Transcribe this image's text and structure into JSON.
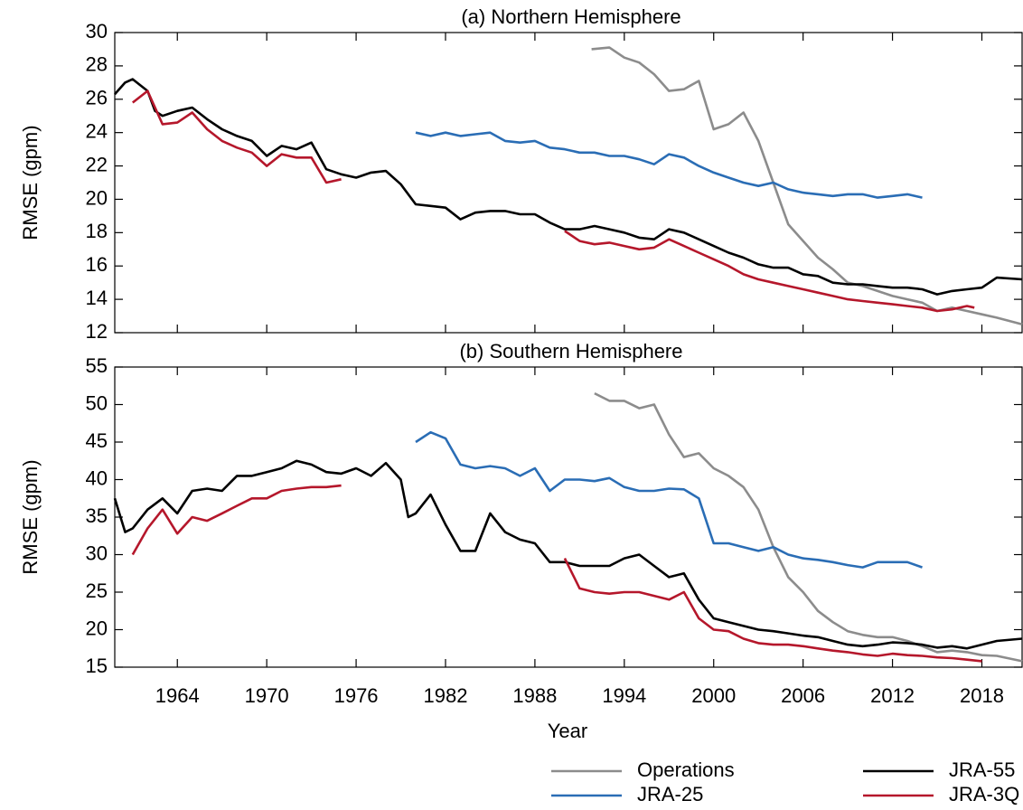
{
  "chart_data": [
    {
      "type": "line",
      "title": "(a) Northern Hemisphere",
      "ylabel": "RMSE (gpm)",
      "xlim": [
        1959.8,
        2020.7
      ],
      "xticks": [
        1964,
        1970,
        1976,
        1982,
        1988,
        1994,
        2000,
        2006,
        2012,
        2018
      ],
      "ylim": [
        12,
        30
      ],
      "yticks": [
        12,
        14,
        16,
        18,
        20,
        22,
        24,
        26,
        28,
        30
      ],
      "series": [
        {
          "color": "#8c8c8c",
          "x": [
            1991.8,
            1993,
            1994,
            1995,
            1996,
            1997,
            1998,
            1999,
            2000,
            2001,
            2002,
            2003,
            2004,
            2005,
            2006,
            2007,
            2008,
            2009,
            2010,
            2011,
            2012,
            2013,
            2014,
            2015,
            2016,
            2017,
            2018,
            2019,
            2020.7
          ],
          "values": [
            29,
            29.1,
            28.5,
            28.2,
            27.5,
            26.5,
            26.6,
            27.1,
            24.2,
            24.5,
            25.2,
            23.5,
            21,
            18.5,
            17.5,
            16.5,
            15.8,
            15,
            14.8,
            14.5,
            14.2,
            14,
            13.8,
            13.3,
            13.5,
            13.3,
            13.1,
            12.9,
            12.5
          ]
        },
        {
          "color": "#2a6db5",
          "x": [
            1980,
            1981,
            1982,
            1983,
            1984,
            1985,
            1986,
            1987,
            1988,
            1989,
            1990,
            1991,
            1992,
            1993,
            1994,
            1995,
            1996,
            1997,
            1998,
            1999,
            2000,
            2001,
            2002,
            2003,
            2004,
            2005,
            2006,
            2007,
            2008,
            2009,
            2010,
            2011,
            2012,
            2013,
            2014
          ],
          "values": [
            24,
            23.8,
            24,
            23.8,
            23.9,
            24,
            23.5,
            23.4,
            23.5,
            23.1,
            23,
            22.8,
            22.8,
            22.6,
            22.6,
            22.4,
            22.1,
            22.7,
            22.5,
            22,
            21.6,
            21.3,
            21,
            20.8,
            21,
            20.6,
            20.4,
            20.3,
            20.2,
            20.3,
            20.3,
            20.1,
            20.2,
            20.3,
            20.1
          ]
        },
        {
          "color": "#000000",
          "x": [
            1959.8,
            1960.5,
            1961,
            1962,
            1962.5,
            1963,
            1964,
            1965,
            1966,
            1967,
            1968,
            1969,
            1970,
            1971,
            1972,
            1973,
            1974,
            1975,
            1976,
            1977,
            1978,
            1979,
            1980,
            1981,
            1982,
            1983,
            1984,
            1985,
            1986,
            1987,
            1988,
            1989,
            1990,
            1991,
            1992,
            1993,
            1994,
            1995,
            1996,
            1997,
            1998,
            1999,
            2000,
            2001,
            2002,
            2003,
            2004,
            2005,
            2006,
            2007,
            2008,
            2009,
            2010,
            2011,
            2012,
            2013,
            2014,
            2015,
            2016,
            2017,
            2018,
            2019,
            2020.7
          ],
          "values": [
            26.3,
            27,
            27.2,
            26.5,
            25.3,
            25,
            25.3,
            25.5,
            24.8,
            24.2,
            23.8,
            23.5,
            22.6,
            23.2,
            23,
            23.4,
            21.8,
            21.5,
            21.3,
            21.6,
            21.7,
            20.9,
            19.7,
            19.6,
            19.5,
            18.8,
            19.2,
            19.3,
            19.3,
            19.1,
            19.1,
            18.6,
            18.2,
            18.2,
            18.4,
            18.2,
            18,
            17.7,
            17.6,
            18.2,
            18,
            17.6,
            17.2,
            16.8,
            16.5,
            16.1,
            15.9,
            15.9,
            15.5,
            15.4,
            15,
            14.9,
            14.9,
            14.8,
            14.7,
            14.7,
            14.6,
            14.3,
            14.5,
            14.6,
            14.7,
            15.3,
            15.2
          ]
        },
        {
          "color": "#b5172b",
          "x": [
            1961,
            1962,
            1963,
            1964,
            1965,
            1966,
            1967,
            1968,
            1969,
            1970,
            1971,
            1972,
            1973,
            1974,
            1975,
            null,
            1990,
            1991,
            1992,
            1993,
            1994,
            1995,
            1996,
            1997,
            1998,
            1999,
            2000,
            2001,
            2002,
            2003,
            2004,
            2005,
            2006,
            2007,
            2008,
            2009,
            2010,
            2011,
            2012,
            2013,
            2014,
            2015,
            2016,
            2017,
            2017.5
          ],
          "values": [
            25.8,
            26.5,
            24.5,
            24.6,
            25.2,
            24.2,
            23.5,
            23.1,
            22.8,
            22,
            22.7,
            22.5,
            22.5,
            21,
            21.2,
            null,
            18.1,
            17.5,
            17.3,
            17.4,
            17.2,
            17,
            17.1,
            17.6,
            17.2,
            16.8,
            16.4,
            16,
            15.5,
            15.2,
            15,
            14.8,
            14.6,
            14.4,
            14.2,
            14,
            13.9,
            13.8,
            13.7,
            13.6,
            13.5,
            13.3,
            13.4,
            13.6,
            13.5
          ]
        }
      ]
    },
    {
      "type": "line",
      "title": "(b) Southern Hemisphere",
      "ylabel": "RMSE (gpm)",
      "xlabel": "Year",
      "xlim": [
        1959.8,
        2020.7
      ],
      "xticks": [
        1964,
        1970,
        1976,
        1982,
        1988,
        1994,
        2000,
        2006,
        2012,
        2018
      ],
      "ylim": [
        15,
        55
      ],
      "yticks": [
        15,
        20,
        25,
        30,
        35,
        40,
        45,
        50,
        55
      ],
      "series": [
        {
          "name": "Operations",
          "color": "#8c8c8c",
          "x": [
            1992,
            1993,
            1994,
            1995,
            1996,
            1997,
            1998,
            1999,
            2000,
            2001,
            2002,
            2003,
            2004,
            2005,
            2006,
            2007,
            2008,
            2009,
            2010,
            2011,
            2012,
            2013,
            2014,
            2015,
            2016,
            2017,
            2018,
            2019,
            2020.7
          ],
          "values": [
            51.5,
            50.5,
            50.5,
            49.5,
            50,
            46,
            43,
            43.5,
            41.5,
            40.5,
            39,
            36,
            31,
            27,
            25,
            22.5,
            21,
            19.8,
            19.3,
            19,
            19,
            18.5,
            17.8,
            17,
            17.2,
            17,
            16.6,
            16.5,
            15.8
          ]
        },
        {
          "name": "JRA-25",
          "color": "#2a6db5",
          "x": [
            1980,
            1981,
            1982,
            1983,
            1984,
            1985,
            1986,
            1987,
            1988,
            1989,
            1990,
            1991,
            1992,
            1993,
            1994,
            1995,
            1996,
            1997,
            1998,
            1999,
            2000,
            2001,
            2002,
            2003,
            2004,
            2005,
            2006,
            2007,
            2008,
            2009,
            2010,
            2011,
            2012,
            2013,
            2014
          ],
          "values": [
            45,
            46.3,
            45.5,
            42,
            41.5,
            41.8,
            41.5,
            40.5,
            41.5,
            38.5,
            40,
            40,
            39.8,
            40.2,
            39,
            38.5,
            38.5,
            38.8,
            38.7,
            37.5,
            31.5,
            31.5,
            31,
            30.5,
            31,
            30,
            29.5,
            29.3,
            29,
            28.6,
            28.3,
            29,
            29,
            29,
            28.3
          ]
        },
        {
          "name": "JRA-55",
          "color": "#000000",
          "x": [
            1959.8,
            1960.5,
            1961,
            1962,
            1963,
            1964,
            1965,
            1966,
            1967,
            1968,
            1969,
            1970,
            1971,
            1972,
            1973,
            1974,
            1975,
            1976,
            1977,
            1978,
            1979,
            1979.5,
            1980,
            1981,
            1982,
            1983,
            1984,
            1985,
            1986,
            1987,
            1988,
            1989,
            1990,
            1991,
            1992,
            1993,
            1994,
            1995,
            1996,
            1997,
            1998,
            1999,
            2000,
            2001,
            2002,
            2003,
            2004,
            2005,
            2006,
            2007,
            2008,
            2009,
            2010,
            2011,
            2012,
            2013,
            2014,
            2015,
            2016,
            2017,
            2018,
            2019,
            2020.7
          ],
          "values": [
            37.5,
            33,
            33.5,
            36,
            37.5,
            35.5,
            38.5,
            38.8,
            38.5,
            40.5,
            40.5,
            41,
            41.5,
            42.5,
            42,
            41,
            40.8,
            41.5,
            40.5,
            42.2,
            40,
            35,
            35.5,
            38,
            34,
            30.5,
            30.5,
            35.5,
            33,
            32,
            31.5,
            29,
            29,
            28.5,
            28.5,
            28.5,
            29.5,
            30,
            28.5,
            27,
            27.5,
            24,
            21.5,
            21,
            20.5,
            20,
            19.8,
            19.5,
            19.2,
            19,
            18.5,
            18,
            17.8,
            18,
            18.3,
            18.2,
            18,
            17.6,
            17.8,
            17.5,
            18,
            18.5,
            18.8
          ]
        },
        {
          "name": "JRA-3Q",
          "color": "#b5172b",
          "x": [
            1961,
            1962,
            1963,
            1964,
            1965,
            1966,
            1967,
            1968,
            1969,
            1970,
            1971,
            1972,
            1973,
            1974,
            1975,
            null,
            1990,
            1991,
            1992,
            1993,
            1994,
            1995,
            1996,
            1997,
            1998,
            1999,
            2000,
            2001,
            2002,
            2003,
            2004,
            2005,
            2006,
            2007,
            2008,
            2009,
            2010,
            2011,
            2012,
            2013,
            2014,
            2015,
            2016,
            2017,
            2018
          ],
          "values": [
            30,
            33.5,
            36,
            32.8,
            35,
            34.5,
            35.5,
            36.5,
            37.5,
            37.5,
            38.5,
            38.8,
            39,
            39,
            39.2,
            null,
            29.5,
            25.5,
            25,
            24.8,
            25,
            25,
            24.5,
            24,
            25,
            21.5,
            20,
            19.8,
            18.8,
            18.2,
            18,
            18,
            17.8,
            17.5,
            17.2,
            17,
            16.7,
            16.5,
            16.8,
            16.6,
            16.5,
            16.3,
            16.2,
            16,
            15.8
          ]
        }
      ]
    }
  ]
}
